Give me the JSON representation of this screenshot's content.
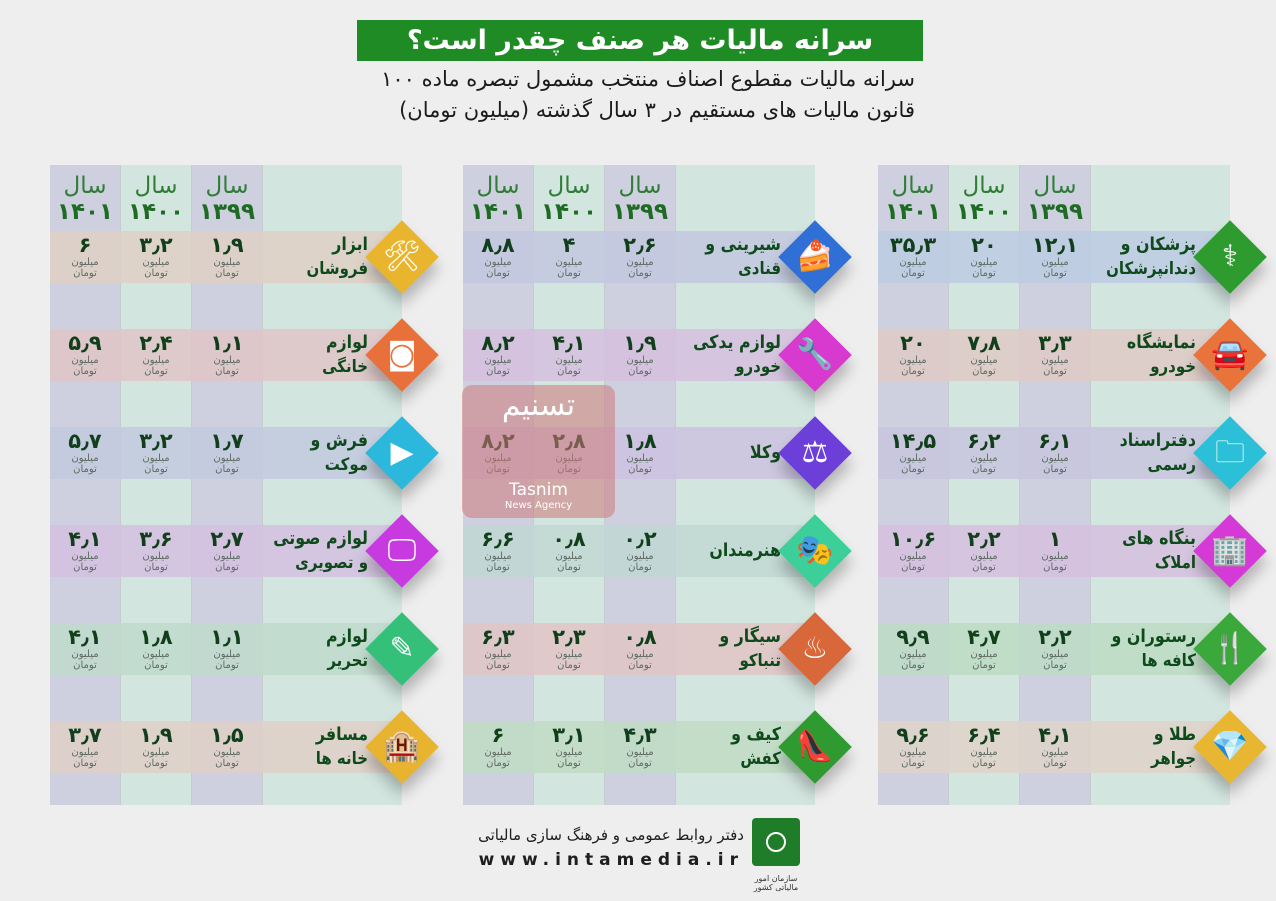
{
  "header": {
    "title": "سرانه مالیات هر صنف چقدر است؟",
    "subtitle_line1": "سرانه مالیات مقطوع اصناف منتخب مشمول تبصره ماده ۱۰۰",
    "subtitle_line2": "قانون مالیات های مستقیم در ۳ سال گذشته (میلیون تومان)"
  },
  "year_word": "سال",
  "years": [
    "۱۴۰۱",
    "۱۴۰۰",
    "۱۳۹۹"
  ],
  "unit_line1": "میلیون",
  "unit_line2": "تومان",
  "panels": [
    {
      "rows": [
        {
          "line1": "پزشکان و",
          "line2": "دندانپزشکان",
          "icon": "stethoscope-icon",
          "glyph": "⚕",
          "color": "#2e9b2e",
          "band": "#bccde3",
          "v1399": "۱۲٫۱",
          "v1400": "۲۰",
          "v1401": "۳۵٫۳"
        },
        {
          "line1": "نمایشگاه",
          "line2": "خودرو",
          "icon": "car-icon",
          "glyph": "🚘",
          "color": "#e8743b",
          "band": "#dfcac5",
          "v1399": "۳٫۳",
          "v1400": "۷٫۸",
          "v1401": "۲۰"
        },
        {
          "line1": "دفتراسناد",
          "line2": "رسمی",
          "icon": "folder-icon",
          "glyph": "🗀",
          "color": "#2bc0d8",
          "band": "#c7c5de",
          "v1399": "۶٫۱",
          "v1400": "۶٫۲",
          "v1401": "۱۴٫۵"
        },
        {
          "line1": "بنگاه های",
          "line2": "املاک",
          "icon": "building-icon",
          "glyph": "🏢",
          "color": "#d63ad6",
          "band": "#d5bfdf",
          "v1399": "۱",
          "v1400": "۲٫۲",
          "v1401": "۱۰٫۶"
        },
        {
          "line1": "رستوران و",
          "line2": "کافه ها",
          "icon": "fork-knife-icon",
          "glyph": "🍴",
          "color": "#3aa83a",
          "band": "#bcdcc4",
          "v1399": "۲٫۲",
          "v1400": "۴٫۷",
          "v1401": "۹٫۹"
        },
        {
          "line1": "طلا و",
          "line2": "جواهر",
          "icon": "necklace-icon",
          "glyph": "💎",
          "color": "#e8b630",
          "band": "#dfd3ca",
          "v1399": "۴٫۱",
          "v1400": "۶٫۴",
          "v1401": "۹٫۶"
        }
      ]
    },
    {
      "rows": [
        {
          "line1": "شیرینی و",
          "line2": "قنادی",
          "icon": "cake-icon",
          "glyph": "🍰",
          "color": "#2f6fd6",
          "band": "#c2c8e0",
          "v1399": "۲٫۶",
          "v1400": "۴",
          "v1401": "۸٫۸"
        },
        {
          "line1": "لوازم یدکی",
          "line2": "خودرو",
          "icon": "car-wrench-icon",
          "glyph": "🔧",
          "color": "#d83ad0",
          "band": "#d6c0df",
          "v1399": "۱٫۹",
          "v1400": "۴٫۱",
          "v1401": "۸٫۲"
        },
        {
          "line1": "وکلا",
          "line2": "",
          "icon": "scales-icon",
          "glyph": "⚖",
          "color": "#6b3fd8",
          "band": "#cbc2e0",
          "v1399": "۱٫۸",
          "v1400": "۲٫۸",
          "v1401": "۸٫۲"
        },
        {
          "line1": "هنرمندان",
          "line2": "",
          "icon": "theater-masks-icon",
          "glyph": "🎭",
          "color": "#3ccf9a",
          "band": "#bfd8d4",
          "v1399": "۰٫۲",
          "v1400": "۰٫۸",
          "v1401": "۶٫۶"
        },
        {
          "line1": "سیگار و",
          "line2": "تنباکو",
          "icon": "pipe-icon",
          "glyph": "♨",
          "color": "#d8683a",
          "band": "#e0c6c6",
          "v1399": "۰٫۸",
          "v1400": "۲٫۳",
          "v1401": "۶٫۳"
        },
        {
          "line1": "کیف و",
          "line2": "کفش",
          "icon": "bag-shoe-icon",
          "glyph": "👠",
          "color": "#2f9a2f",
          "band": "#bfdcc4",
          "v1399": "۴٫۳",
          "v1400": "۳٫۱",
          "v1401": "۶"
        }
      ]
    },
    {
      "rows": [
        {
          "line1": "ابزار",
          "line2": "فروشان",
          "icon": "tools-icon",
          "glyph": "🛠",
          "color": "#eab52e",
          "band": "#dfd0c6",
          "v1399": "۱٫۹",
          "v1400": "۳٫۲",
          "v1401": "۶"
        },
        {
          "line1": "لوازم",
          "line2": "خانگی",
          "icon": "washing-machine-icon",
          "glyph": "◙",
          "color": "#e8703a",
          "band": "#dfc6c8",
          "v1399": "۱٫۱",
          "v1400": "۲٫۴",
          "v1401": "۵٫۹"
        },
        {
          "line1": "فرش و",
          "line2": "موکت",
          "icon": "carpet-icon",
          "glyph": "▶",
          "color": "#2bb8dc",
          "band": "#c2cadf",
          "v1399": "۱٫۷",
          "v1400": "۳٫۲",
          "v1401": "۵٫۷"
        },
        {
          "line1": "لوازم صوتی",
          "line2": "و تصویری",
          "icon": "tv-icon",
          "glyph": "🖵",
          "color": "#c63ae0",
          "band": "#d3c0e0",
          "v1399": "۲٫۷",
          "v1400": "۳٫۶",
          "v1401": "۴٫۱"
        },
        {
          "line1": "لوازم",
          "line2": "تحریر",
          "icon": "stationery-icon",
          "glyph": "✎",
          "color": "#35c07a",
          "band": "#bedbcd",
          "v1399": "۱٫۱",
          "v1400": "۱٫۸",
          "v1401": "۴٫۱"
        },
        {
          "line1": "مسافر",
          "line2": "خانه ها",
          "icon": "hotel-location-icon",
          "glyph": "🏨",
          "color": "#e8b32e",
          "band": "#dfd0c8",
          "v1399": "۱٫۵",
          "v1400": "۱٫۹",
          "v1401": "۳٫۷"
        }
      ]
    }
  ],
  "watermark": {
    "logo_text": "تسنیم",
    "name": "Tasnim",
    "tagline": "News Agency"
  },
  "footer": {
    "org_line": "دفتر روابط عمومی و فرهنگ سازی مالیاتی",
    "website": "www.intamedia.ir",
    "logo_caption": "سازمان امور مالیاتی کشور",
    "logo_color": "#1f7d2a"
  }
}
